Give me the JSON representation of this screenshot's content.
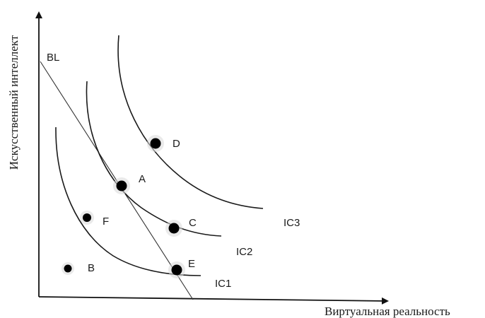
{
  "axes": {
    "x_title": "Виртуальная реальность",
    "y_title": "Искусственный интеллект"
  },
  "lines": {
    "budget": "BL",
    "ic1": "IC1",
    "ic2": "IC2",
    "ic3": "IC3"
  },
  "points": {
    "a": "A",
    "b": "B",
    "c": "C",
    "d": "D",
    "e": "E",
    "f": "F"
  }
}
